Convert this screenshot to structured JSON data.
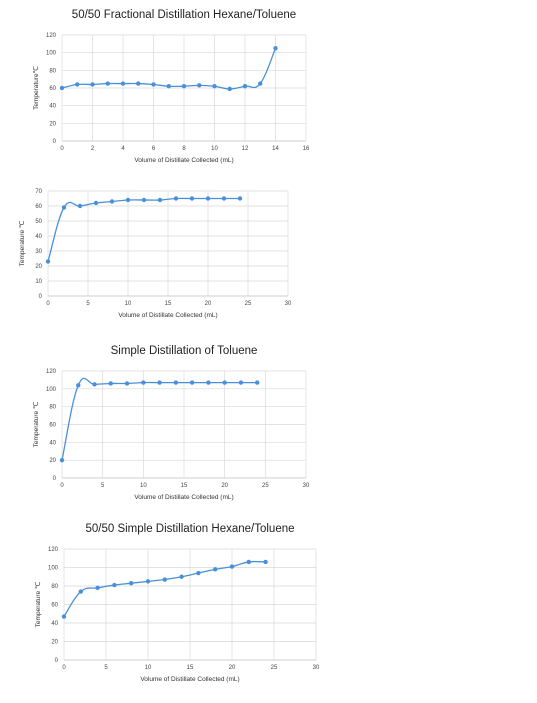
{
  "chart_data": [
    {
      "type": "scatter",
      "title": "50/50 Fractional Distillation Hexane/Toluene",
      "xlabel": "Volume of Distillate Collected (mL)",
      "ylabel": "Temperature℃",
      "xlim": [
        0,
        16
      ],
      "ylim": [
        0,
        120
      ],
      "xticks": [
        "0",
        "2",
        "4",
        "6",
        "8",
        "10",
        "12",
        "14",
        "16"
      ],
      "yticks": [
        "0",
        "20",
        "40",
        "60",
        "80",
        "100",
        "120"
      ],
      "grid": true,
      "series": [
        {
          "x": [
            0,
            1,
            2,
            3,
            4,
            5,
            6,
            7,
            8,
            9,
            10,
            11,
            12,
            13,
            14
          ],
          "y": [
            60,
            64,
            64,
            65,
            65,
            65,
            64,
            62,
            62,
            63,
            62,
            59,
            62,
            65,
            105
          ]
        }
      ]
    },
    {
      "type": "scatter",
      "title": "",
      "xlabel": "Volume of Distillate Collected (mL)",
      "ylabel": "Temperature ℃",
      "xlim": [
        0,
        30
      ],
      "ylim": [
        0,
        70
      ],
      "xticks": [
        "0",
        "5",
        "10",
        "15",
        "20",
        "25",
        "30"
      ],
      "yticks": [
        "0",
        "10",
        "20",
        "30",
        "40",
        "50",
        "60",
        "70"
      ],
      "grid": true,
      "series": [
        {
          "x": [
            0,
            2,
            4,
            6,
            8,
            10,
            12,
            14,
            16,
            18,
            20,
            22,
            24
          ],
          "y": [
            23,
            59,
            60,
            62,
            63,
            64,
            64,
            64,
            65,
            65,
            65,
            65,
            65
          ]
        }
      ]
    },
    {
      "type": "scatter",
      "title": "Simple Distillation of Toluene",
      "xlabel": "Volume of Distillate Collected (mL)",
      "ylabel": "Temperature ℃",
      "xlim": [
        0,
        30
      ],
      "ylim": [
        0,
        120
      ],
      "xticks": [
        "0",
        "5",
        "10",
        "15",
        "20",
        "25",
        "30"
      ],
      "yticks": [
        "0",
        "20",
        "40",
        "60",
        "80",
        "100",
        "120"
      ],
      "grid": true,
      "series": [
        {
          "x": [
            0,
            2,
            4,
            6,
            8,
            10,
            12,
            14,
            16,
            18,
            20,
            22,
            24
          ],
          "y": [
            20,
            104,
            105,
            106,
            106,
            107,
            107,
            107,
            107,
            107,
            107,
            107,
            107
          ]
        }
      ]
    },
    {
      "type": "scatter",
      "title": "50/50 Simple Distillation Hexane/Toluene",
      "xlabel": "Volume of Distillate Collected (mL)",
      "ylabel": "Temperature ℃",
      "xlim": [
        0,
        30
      ],
      "ylim": [
        0,
        120
      ],
      "xticks": [
        "0",
        "5",
        "10",
        "15",
        "20",
        "25",
        "30"
      ],
      "yticks": [
        "0",
        "20",
        "40",
        "60",
        "80",
        "100",
        "120"
      ],
      "grid": true,
      "series": [
        {
          "x": [
            0,
            2,
            4,
            6,
            8,
            10,
            12,
            14,
            16,
            18,
            20,
            22,
            24
          ],
          "y": [
            47,
            74,
            78,
            81,
            83,
            85,
            87,
            90,
            94,
            98,
            101,
            106,
            106
          ]
        }
      ]
    }
  ]
}
